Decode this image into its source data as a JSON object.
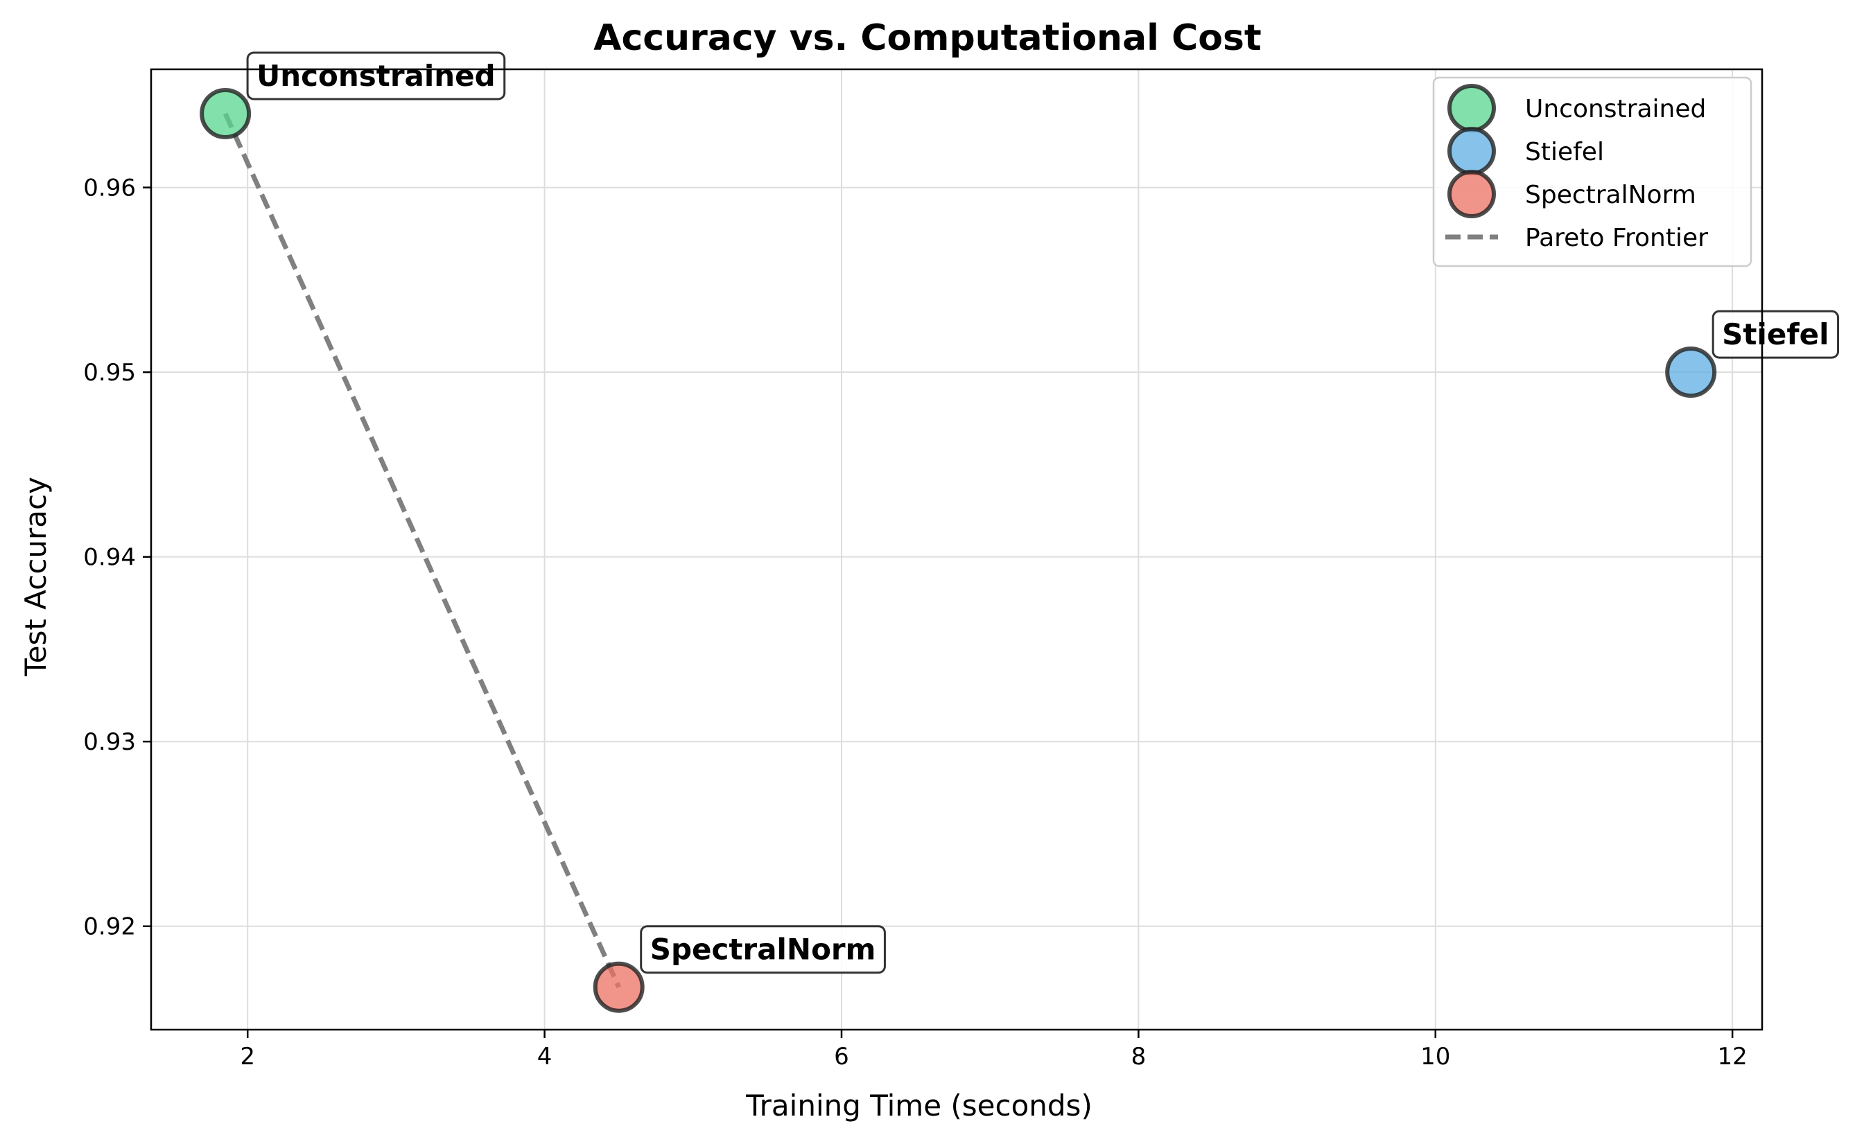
{
  "chart_data": {
    "type": "scatter",
    "title": "Accuracy vs. Computational Cost",
    "xlabel": "Training Time (seconds)",
    "ylabel": "Test Accuracy",
    "xlim": [
      1.35,
      12.2
    ],
    "ylim": [
      0.9144,
      0.9664
    ],
    "xticks": [
      2,
      4,
      6,
      8,
      10,
      12
    ],
    "yticks": [
      0.92,
      0.93,
      0.94,
      0.95,
      0.96
    ],
    "xtick_labels": [
      "2",
      "4",
      "6",
      "8",
      "10",
      "12"
    ],
    "ytick_labels": [
      "0.92",
      "0.93",
      "0.94",
      "0.95",
      "0.96"
    ],
    "grid": true,
    "legend_position": "top-right",
    "series": [
      {
        "name": "Unconstrained",
        "x": 1.85,
        "y": 0.964,
        "color": "#58d68d",
        "annotation": "Unconstrained"
      },
      {
        "name": "Stiefel",
        "x": 11.72,
        "y": 0.95,
        "color": "#5dade2",
        "annotation": "Stiefel"
      },
      {
        "name": "SpectralNorm",
        "x": 4.5,
        "y": 0.9167,
        "color": "#ec7063",
        "annotation": "SpectralNorm"
      }
    ],
    "pareto": {
      "name": "Pareto Frontier",
      "color": "#808080",
      "points": [
        [
          1.85,
          0.964
        ],
        [
          4.5,
          0.9167
        ]
      ]
    }
  }
}
